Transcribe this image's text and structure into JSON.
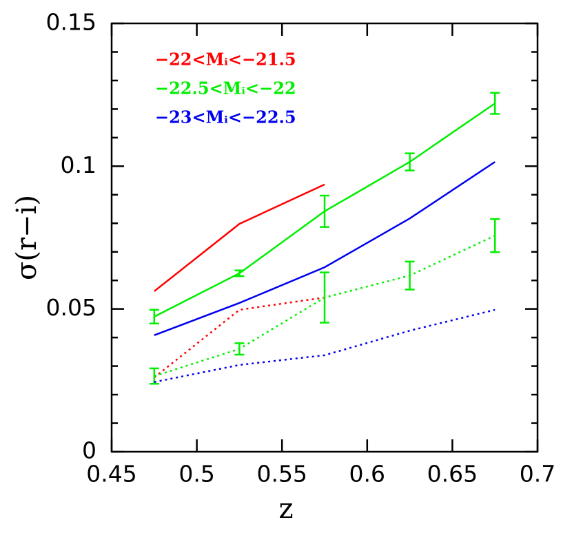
{
  "chart_data": {
    "type": "line",
    "xlabel": "z",
    "ylabel": "σ(r−i)",
    "xlim": [
      0.45,
      0.7
    ],
    "xticks": [
      0.45,
      0.5,
      0.55,
      0.6,
      0.65,
      0.7
    ],
    "ylim": [
      0,
      0.15
    ],
    "yticks": [
      0,
      0.05,
      0.1,
      0.15
    ],
    "yminor_ticks": [
      0.01,
      0.02,
      0.03,
      0.04,
      0.06,
      0.07,
      0.08,
      0.09,
      0.11,
      0.12,
      0.13,
      0.14
    ],
    "series": [
      {
        "name": "−22<Mᵢ<−21.5",
        "color": "#ff0000",
        "x": [
          0.475,
          0.525,
          0.575
        ],
        "values": [
          0.0562,
          0.0798,
          0.0936
        ],
        "dotted_values": [
          0.026,
          0.0497,
          0.054
        ]
      },
      {
        "name": "−22.5<Mᵢ<−22",
        "color": "#00ee00",
        "x": [
          0.475,
          0.525,
          0.575,
          0.625,
          0.675
        ],
        "values": [
          0.0473,
          0.0625,
          0.0842,
          0.1015,
          0.122
        ],
        "errors": [
          0.0024,
          0.001,
          0.0055,
          0.003,
          0.0037
        ],
        "dotted_values": [
          0.0265,
          0.036,
          0.054,
          0.0617,
          0.0757
        ],
        "dotted_errors": [
          0.0027,
          0.002,
          0.0088,
          0.0049,
          0.0058
        ]
      },
      {
        "name": "−23<Mᵢ<−22.5",
        "color": "#0000ee",
        "x": [
          0.475,
          0.525,
          0.575,
          0.625,
          0.675
        ],
        "values": [
          0.0408,
          0.0521,
          0.0646,
          0.0817,
          0.1015
        ],
        "dotted_values": [
          0.0244,
          0.0304,
          0.0338,
          0.0424,
          0.0497
        ]
      }
    ]
  }
}
